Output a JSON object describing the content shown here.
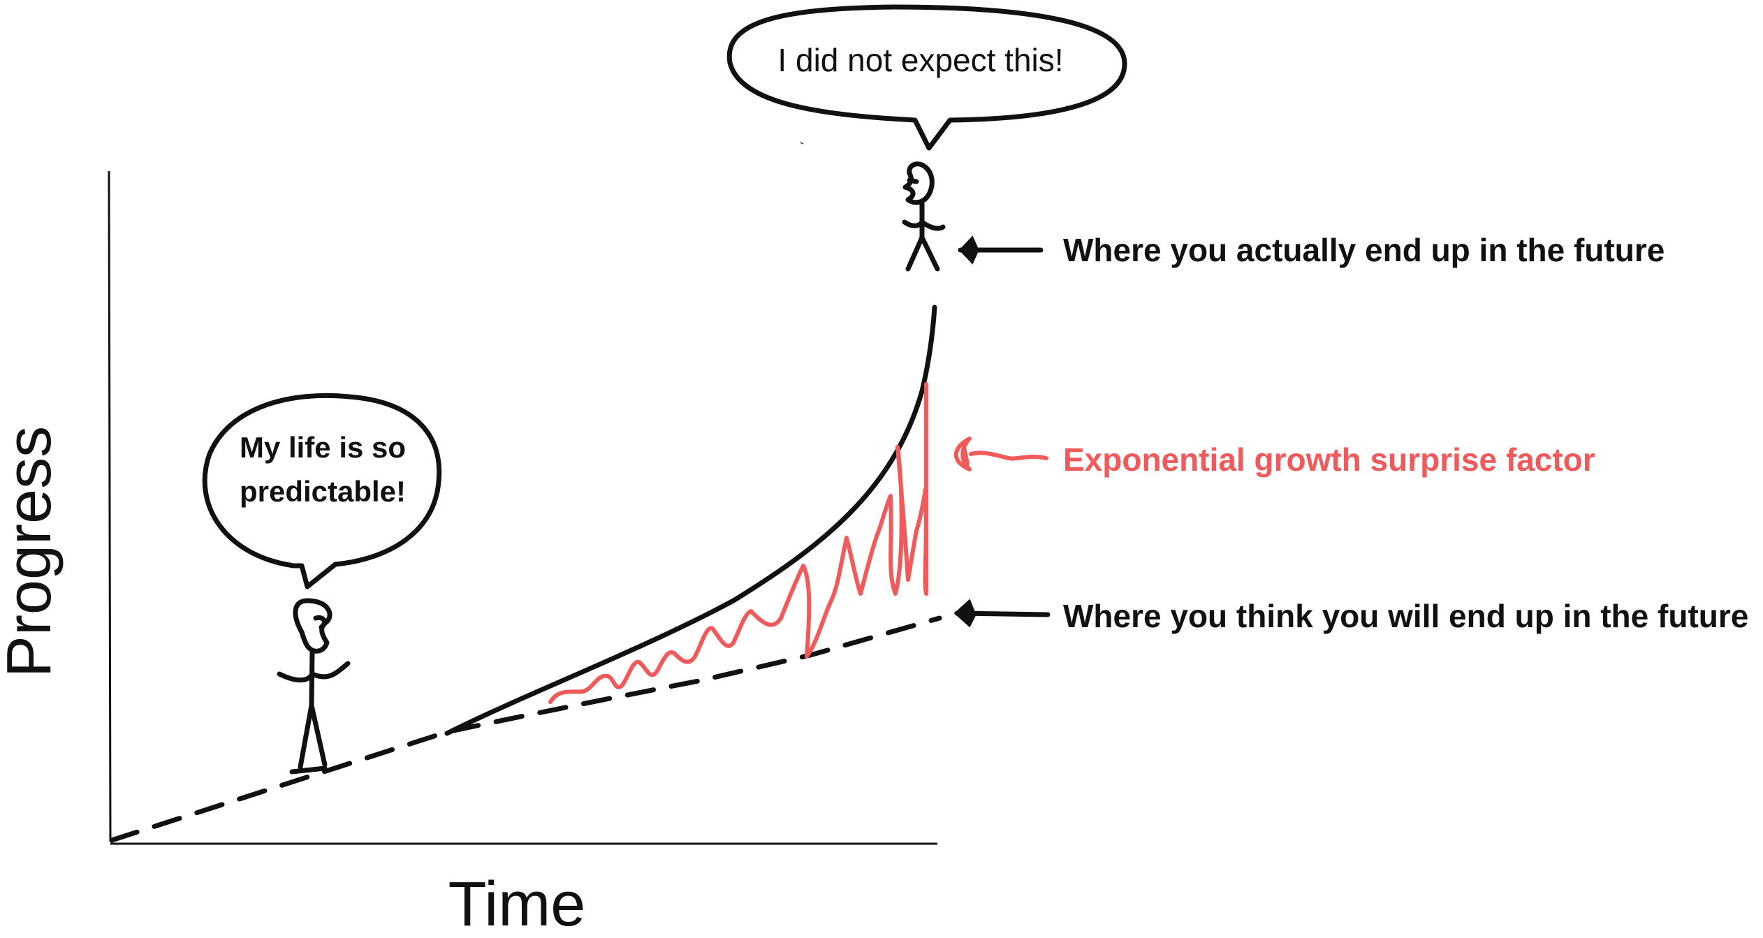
{
  "axes": {
    "x_label": "Time",
    "y_label": "Progress"
  },
  "speech_bubbles": {
    "left_person": "My life is so predictable!",
    "left_person_lines": [
      "My life is so",
      "predictable!"
    ],
    "right_person": "I did not expect this!"
  },
  "annotations": {
    "actual_future": "Where you actually end up in the future",
    "surprise_factor": "Exponential growth surprise factor",
    "expected_future": "Where you think you will end up in the future"
  },
  "colors": {
    "ink": "#111111",
    "surprise": "#f05a5a",
    "background": "#ffffff"
  },
  "icons": [
    "stick-figure",
    "arrow-left"
  ]
}
